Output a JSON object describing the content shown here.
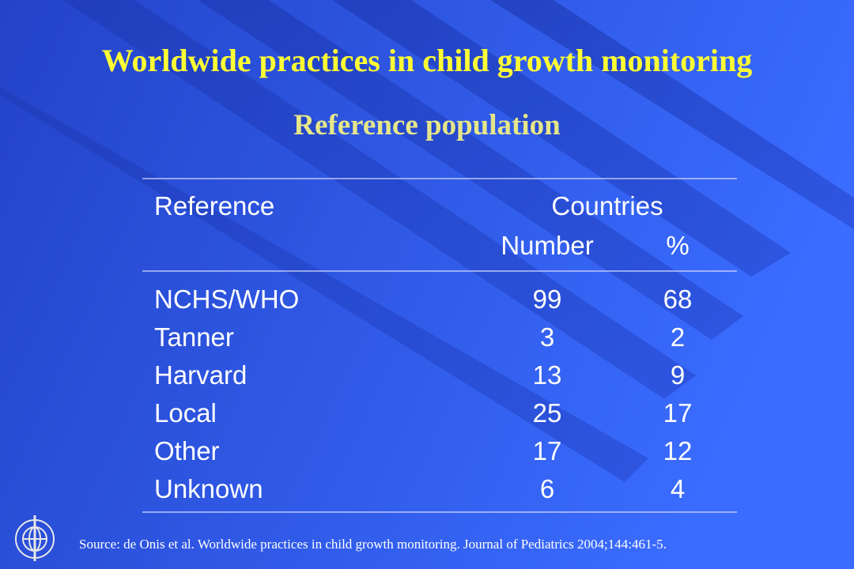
{
  "title": "Worldwide practices in child growth monitoring",
  "subtitle": "Reference population",
  "table": {
    "header": [
      "Reference",
      "Countries"
    ],
    "subheader": [
      "Number",
      "%"
    ],
    "rows": [
      [
        "NCHS/WHO",
        99,
        68
      ],
      [
        "Tanner",
        3,
        2
      ],
      [
        "Harvard",
        13,
        9
      ],
      [
        "Local",
        25,
        17
      ],
      [
        "Other",
        17,
        12
      ],
      [
        "Unknown",
        6,
        4
      ]
    ]
  },
  "source": "Source: de Onis et al. Worldwide practices in child growth monitoring. Journal of Pediatrics 2004;144:461-5."
}
